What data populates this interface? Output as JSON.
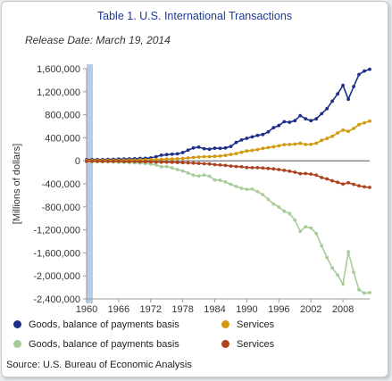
{
  "header": {
    "title": "Table 1. U.S. International Transactions",
    "release": "Release Date: March 19, 2014"
  },
  "source": "Source: U.S. Bureau of Economic Analysis",
  "colors": {
    "goods_exports": "#1b2f8a",
    "services_exports": "#d49a0e",
    "goods_imports": "#a8cc98",
    "services_imports": "#b0401e",
    "year_band": "#b7cde6",
    "axis": "#999999"
  },
  "chart_data": {
    "type": "line",
    "title": "",
    "xlabel": "",
    "ylabel": "[Millions of dollars]",
    "ylim": [
      -2400000,
      1600000
    ],
    "xlim": [
      1960,
      2013
    ],
    "grid": false,
    "legend": "bottom",
    "y_tick_labels": [
      "1,600,000",
      "1,200,000",
      "800,000",
      "400,000",
      "0",
      "-400,000",
      "-800,000",
      "-1,200,000",
      "-1,600,000",
      "-2,000,000",
      "-2,400,000"
    ],
    "x_tick_labels": [
      "1960",
      "1966",
      "1972",
      "1978",
      "1984",
      "1990",
      "1996",
      "2002",
      "2008"
    ],
    "x": [
      1960,
      1961,
      1962,
      1963,
      1964,
      1965,
      1966,
      1967,
      1968,
      1969,
      1970,
      1971,
      1972,
      1973,
      1974,
      1975,
      1976,
      1977,
      1978,
      1979,
      1980,
      1981,
      1982,
      1983,
      1984,
      1985,
      1986,
      1987,
      1988,
      1989,
      1990,
      1991,
      1992,
      1993,
      1994,
      1995,
      1996,
      1997,
      1998,
      1999,
      2000,
      2001,
      2002,
      2003,
      2004,
      2005,
      2006,
      2007,
      2008,
      2009,
      2010,
      2011,
      2012,
      2013
    ],
    "series": [
      {
        "name": "Goods, balance of payments basis",
        "color_key": "goods_exports",
        "values": [
          20000,
          21000,
          21000,
          22000,
          25000,
          27000,
          29000,
          31000,
          34000,
          36000,
          42000,
          43000,
          49000,
          71000,
          98000,
          107000,
          115000,
          121000,
          142000,
          184000,
          224000,
          237000,
          211000,
          201000,
          219000,
          215000,
          224000,
          250000,
          320000,
          362000,
          390000,
          415000,
          440000,
          457000,
          503000,
          575000,
          612000,
          679000,
          670000,
          697000,
          784000,
          731000,
          697000,
          729000,
          819000,
          905000,
          1036000,
          1161000,
          1310000,
          1070000,
          1290000,
          1500000,
          1560000,
          1590000
        ]
      },
      {
        "name": "Services",
        "color_key": "services_exports",
        "values": [
          6000,
          7000,
          7000,
          8000,
          8000,
          9000,
          10000,
          11000,
          12000,
          13000,
          15000,
          16000,
          18000,
          21000,
          25000,
          29000,
          32000,
          35000,
          42000,
          50000,
          57000,
          65000,
          71000,
          71000,
          78000,
          82000,
          94000,
          110000,
          126000,
          148000,
          170000,
          180000,
          196000,
          215000,
          230000,
          244000,
          261000,
          280000,
          283000,
          290000,
          302000,
          284000,
          286000,
          305000,
          355000,
          387000,
          425000,
          484000,
          534000,
          512000,
          563000,
          628000,
          660000,
          690000
        ]
      },
      {
        "name": "Goods, balance of payments basis",
        "color_key": "goods_imports",
        "values": [
          -15000,
          -15000,
          -16000,
          -17000,
          -19000,
          -22000,
          -26000,
          -27000,
          -33000,
          -36000,
          -40000,
          -46000,
          -56000,
          -71000,
          -104000,
          -99000,
          -124000,
          -152000,
          -176000,
          -212000,
          -250000,
          -265000,
          -247000,
          -268000,
          -332000,
          -338000,
          -368000,
          -410000,
          -447000,
          -477000,
          -498000,
          -491000,
          -537000,
          -589000,
          -669000,
          -750000,
          -803000,
          -876000,
          -918000,
          -1031000,
          -1226000,
          -1148000,
          -1167000,
          -1264000,
          -1477000,
          -1681000,
          -1862000,
          -1985000,
          -2142000,
          -1580000,
          -1938000,
          -2240000,
          -2300000,
          -2290000
        ]
      },
      {
        "name": "Services",
        "color_key": "services_imports",
        "values": [
          -8000,
          -8000,
          -8000,
          -9000,
          -9000,
          -9000,
          -10000,
          -12000,
          -12000,
          -13000,
          -15000,
          -16000,
          -18000,
          -21000,
          -23000,
          -24000,
          -27000,
          -29000,
          -33000,
          -36000,
          -41000,
          -45000,
          -51000,
          -55000,
          -67000,
          -73000,
          -80000,
          -91000,
          -100000,
          -104000,
          -118000,
          -119000,
          -120000,
          -126000,
          -133000,
          -141000,
          -152000,
          -166000,
          -181000,
          -199000,
          -224000,
          -221000,
          -231000,
          -250000,
          -291000,
          -314000,
          -347000,
          -374000,
          -404000,
          -382000,
          -409000,
          -436000,
          -452000,
          -462000
        ]
      }
    ]
  }
}
